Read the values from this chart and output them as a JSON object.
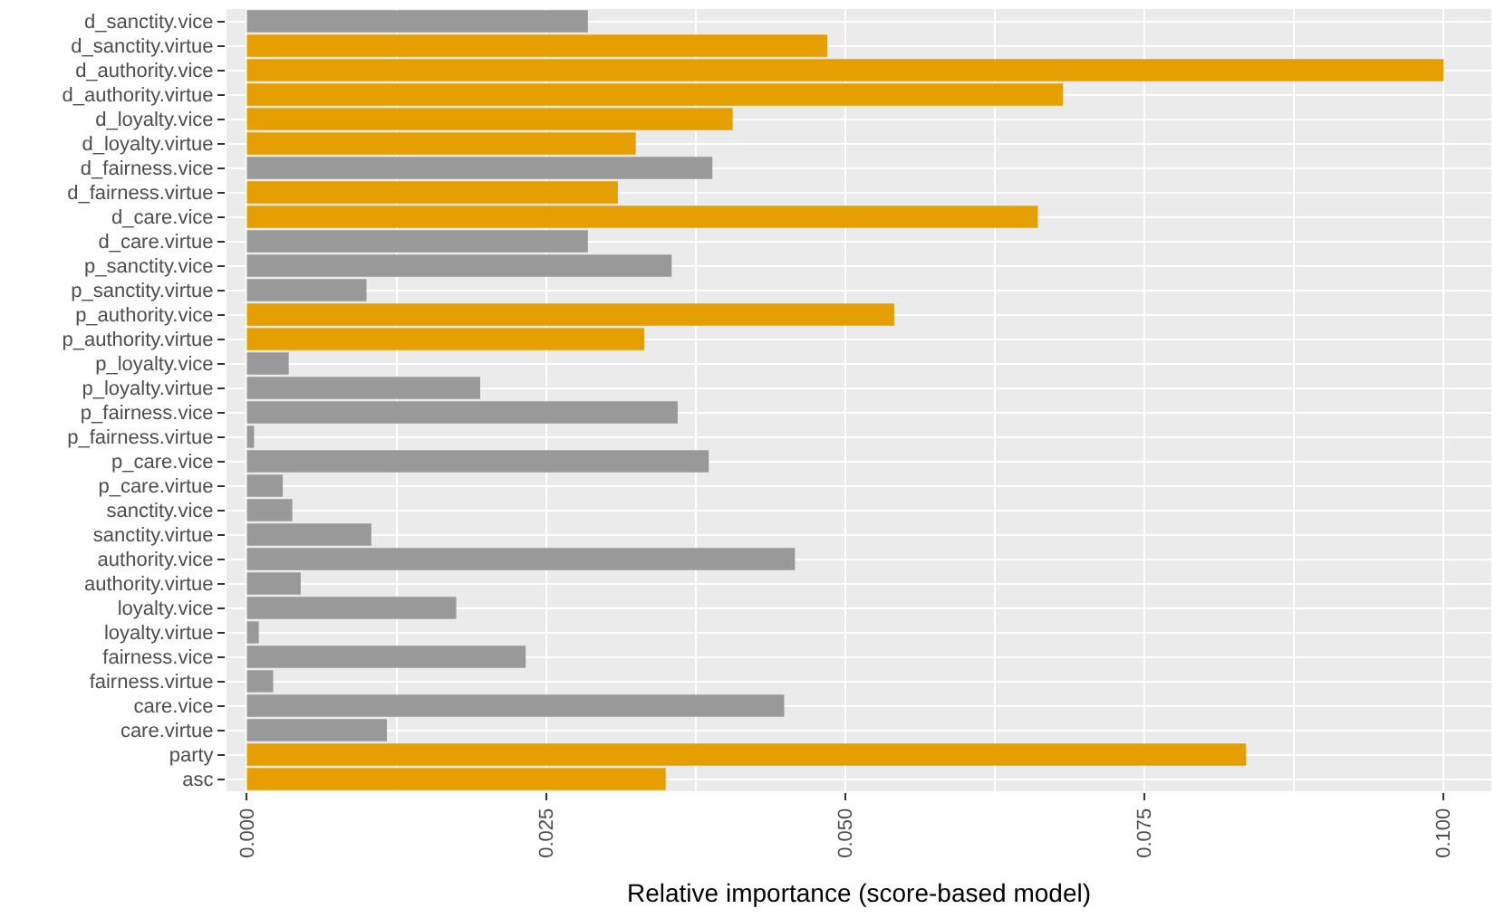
{
  "chart_data": {
    "type": "bar",
    "orientation": "horizontal",
    "xlabel": "Relative importance (score-based model)",
    "categories": [
      "d_sanctity.vice",
      "d_sanctity.virtue",
      "d_authority.vice",
      "d_authority.virtue",
      "d_loyalty.vice",
      "d_loyalty.virtue",
      "d_fairness.vice",
      "d_fairness.virtue",
      "d_care.vice",
      "d_care.virtue",
      "p_sanctity.vice",
      "p_sanctity.virtue",
      "p_authority.vice",
      "p_authority.virtue",
      "p_loyalty.vice",
      "p_loyalty.virtue",
      "p_fairness.vice",
      "p_fairness.virtue",
      "p_care.vice",
      "p_care.virtue",
      "sanctity.vice",
      "sanctity.virtue",
      "authority.vice",
      "authority.virtue",
      "loyalty.vice",
      "loyalty.virtue",
      "fairness.vice",
      "fairness.virtue",
      "care.vice",
      "care.virtue",
      "party",
      "asc"
    ],
    "values": [
      0.0285,
      0.0485,
      0.1,
      0.0682,
      0.0406,
      0.0325,
      0.0389,
      0.031,
      0.0661,
      0.0285,
      0.0355,
      0.01,
      0.0541,
      0.0332,
      0.0035,
      0.0195,
      0.036,
      0.0006,
      0.0386,
      0.003,
      0.0038,
      0.0104,
      0.0458,
      0.0045,
      0.0175,
      0.001,
      0.0233,
      0.0022,
      0.0449,
      0.0117,
      0.0835,
      0.035
    ],
    "colors": [
      "#999999",
      "#e69f00",
      "#e69f00",
      "#e69f00",
      "#e69f00",
      "#e69f00",
      "#999999",
      "#e69f00",
      "#e69f00",
      "#999999",
      "#999999",
      "#999999",
      "#e69f00",
      "#e69f00",
      "#999999",
      "#999999",
      "#999999",
      "#999999",
      "#999999",
      "#999999",
      "#999999",
      "#999999",
      "#999999",
      "#999999",
      "#999999",
      "#999999",
      "#999999",
      "#999999",
      "#999999",
      "#999999",
      "#e69f00",
      "#e69f00"
    ],
    "xlim": [
      -0.0017,
      0.104
    ],
    "xticks": [
      {
        "value": 0,
        "label": "0.000"
      },
      {
        "value": 0.025,
        "label": "0.025"
      },
      {
        "value": 0.05,
        "label": "0.050"
      },
      {
        "value": 0.075,
        "label": "0.075"
      },
      {
        "value": 0.1,
        "label": "0.100"
      }
    ],
    "grid": true,
    "legend": false
  }
}
